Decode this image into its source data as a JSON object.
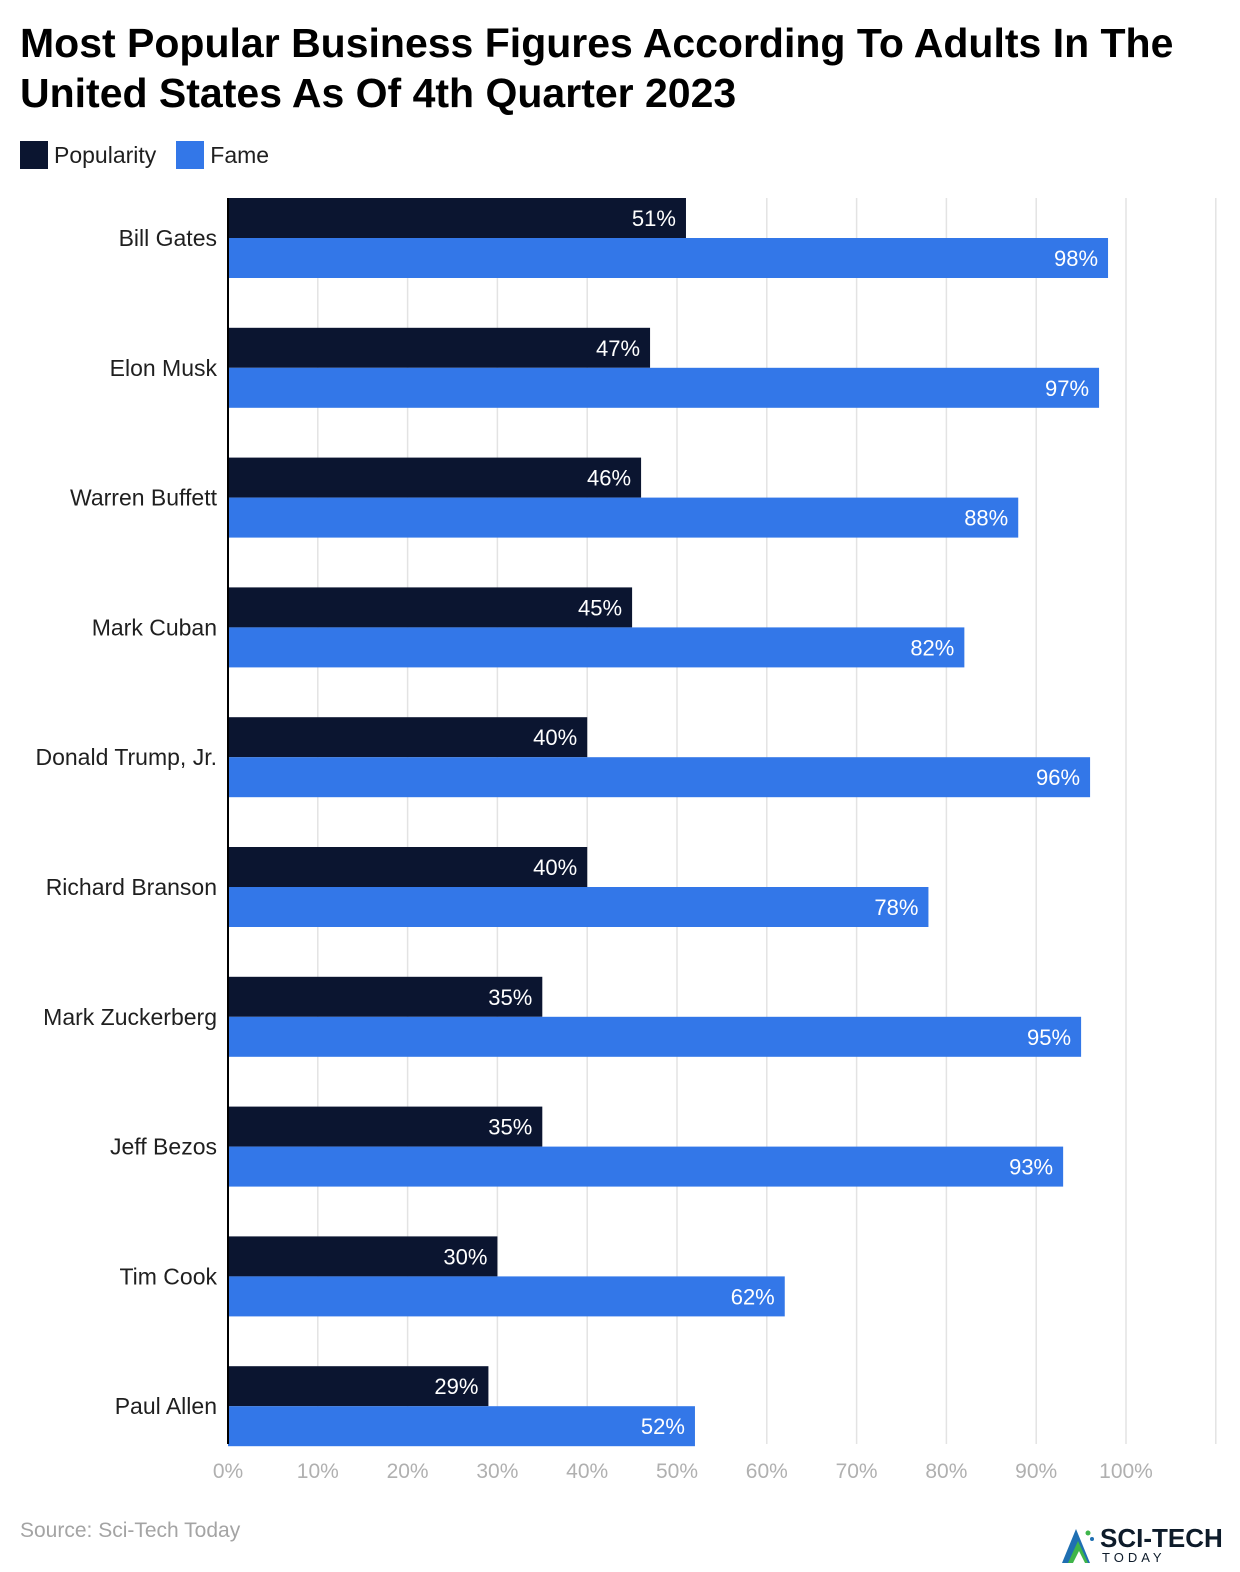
{
  "title": "Most Popular Business Figures According To Adults In The United States As Of 4th Quarter 2023",
  "source": "Source: Sci-Tech Today",
  "logo": {
    "main": "SCI-TECH",
    "sub": "TODAY"
  },
  "colors": {
    "popularity": "#0b1530",
    "fame": "#3377e8",
    "grid": "#e3e3e3",
    "axis": "#000000",
    "tick": "#b0b0b0"
  },
  "chart_data": {
    "type": "bar",
    "orientation": "horizontal",
    "categories": [
      "Bill Gates",
      "Elon Musk",
      "Warren Buffett",
      "Mark Cuban",
      "Donald Trump, Jr.",
      "Richard Branson",
      "Mark Zuckerberg",
      "Jeff Bezos",
      "Tim Cook",
      "Paul Allen"
    ],
    "series": [
      {
        "name": "Popularity",
        "values": [
          51,
          47,
          46,
          45,
          40,
          40,
          35,
          35,
          30,
          29
        ],
        "labels": [
          "51%",
          "47%",
          "46%",
          "45%",
          "40%",
          "40%",
          "35%",
          "35%",
          "30%",
          "29%"
        ]
      },
      {
        "name": "Fame",
        "values": [
          98,
          97,
          88,
          82,
          96,
          78,
          95,
          93,
          62,
          52
        ],
        "labels": [
          "98%",
          "97%",
          "88%",
          "82%",
          "96%",
          "78%",
          "95%",
          "93%",
          "62%",
          "52%"
        ]
      }
    ],
    "xlim": [
      0,
      110
    ],
    "xticks": [
      0,
      10,
      20,
      30,
      40,
      50,
      60,
      70,
      80,
      90,
      100
    ],
    "xtick_labels": [
      "0%",
      "10%",
      "20%",
      "30%",
      "40%",
      "50%",
      "60%",
      "70%",
      "80%",
      "90%",
      "100%"
    ],
    "grid": true,
    "legend_position": "top-left"
  }
}
